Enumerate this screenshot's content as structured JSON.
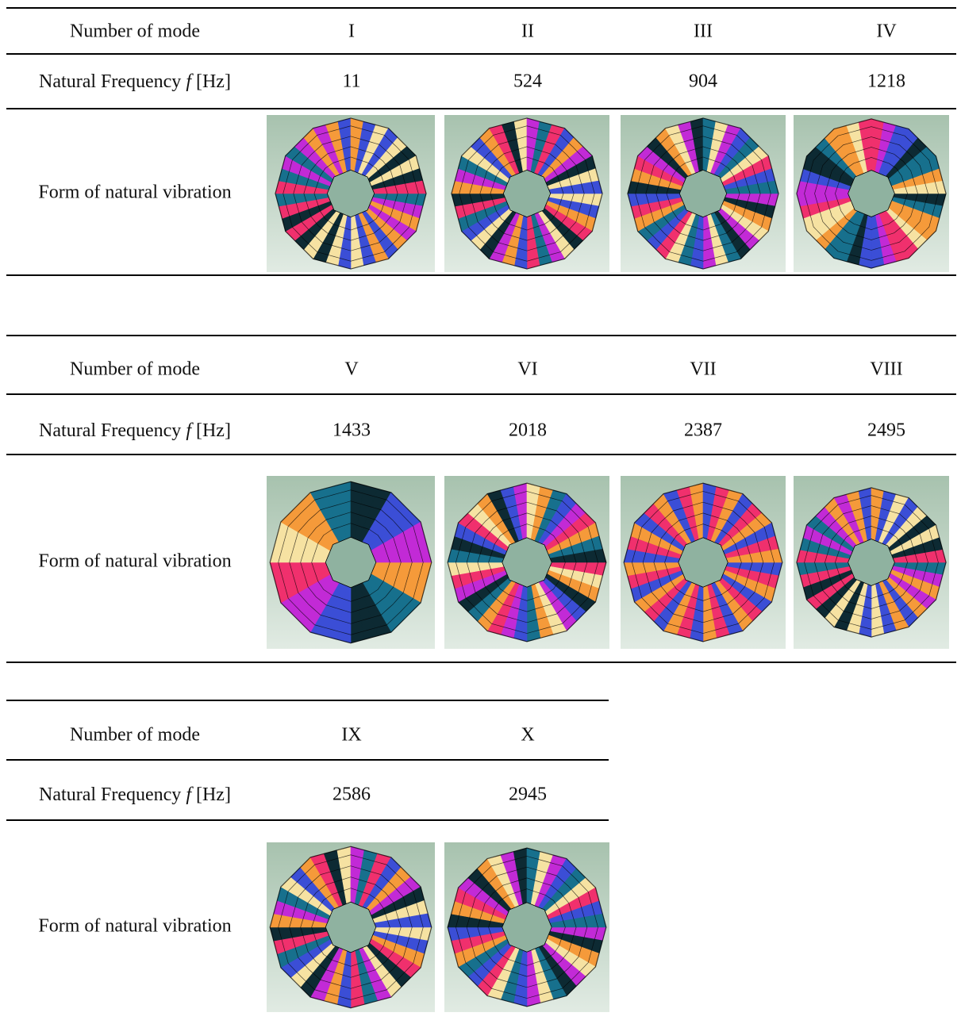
{
  "tables": [
    {
      "mode_label": "Number of mode",
      "modes": [
        "I",
        "II",
        "III",
        "IV"
      ],
      "frequency_label": {
        "text": "Natural Frequency",
        "symbol": "f",
        "unit": "[Hz]"
      },
      "frequencies": [
        11,
        524,
        904,
        1218
      ],
      "form_label": "Form of natural vibration"
    },
    {
      "mode_label": "Number of mode",
      "modes": [
        "V",
        "VI",
        "VII",
        "VIII"
      ],
      "frequency_label": {
        "text": "Natural Frequency",
        "symbol": "f",
        "unit": "[Hz]"
      },
      "frequencies": [
        1433,
        2018,
        2387,
        2495
      ],
      "form_label": "Form of natural vibration"
    },
    {
      "mode_label": "Number of mode",
      "modes": [
        "IX",
        "X"
      ],
      "frequency_label": {
        "text": "Natural Frequency",
        "symbol": "f",
        "unit": "[Hz]"
      },
      "frequencies": [
        2586,
        2945
      ],
      "form_label": "Form of natural vibration"
    }
  ]
}
